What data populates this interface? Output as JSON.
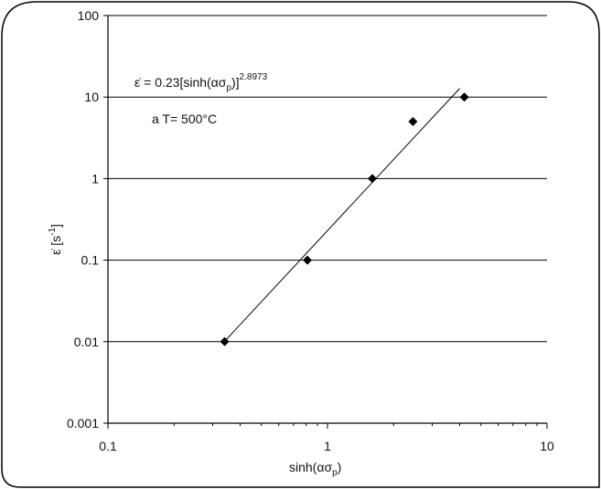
{
  "chart_data": {
    "type": "scatter",
    "x_scale": "log",
    "y_scale": "log",
    "xlim": [
      0.1,
      10
    ],
    "ylim": [
      0.001,
      100
    ],
    "x_ticks": [
      "0.1",
      "1",
      "10"
    ],
    "y_ticks": [
      "0.001",
      "0.01",
      "0.1",
      "1",
      "10",
      "100"
    ],
    "grid": "horizontal",
    "xlabel": {
      "base": "sinh(ασ",
      "sub": "p",
      "close": ")"
    },
    "ylabel": {
      "base": "ε̇ [s",
      "sup": "-1",
      "close": "]"
    },
    "series": [
      {
        "marker": "diamond",
        "points": [
          {
            "x": 0.34,
            "y": 0.01
          },
          {
            "x": 0.81,
            "y": 0.1
          },
          {
            "x": 1.6,
            "y": 1
          },
          {
            "x": 2.45,
            "y": 5
          },
          {
            "x": 4.2,
            "y": 10
          }
        ]
      }
    ],
    "fit_line": {
      "coef": 0.23,
      "exponent": 2.8973,
      "x_from": 0.34,
      "x_to": 4.0
    },
    "annotations": {
      "equation": {
        "lhs": "ε̇ = 0.23[sinh(ασ",
        "sub": "p",
        "close": ")]",
        "sup": "2.8973"
      },
      "condition": "a T= 500°C"
    }
  },
  "colors": {
    "marks": "#000000",
    "grid": "#000000",
    "frame": "#000000"
  }
}
